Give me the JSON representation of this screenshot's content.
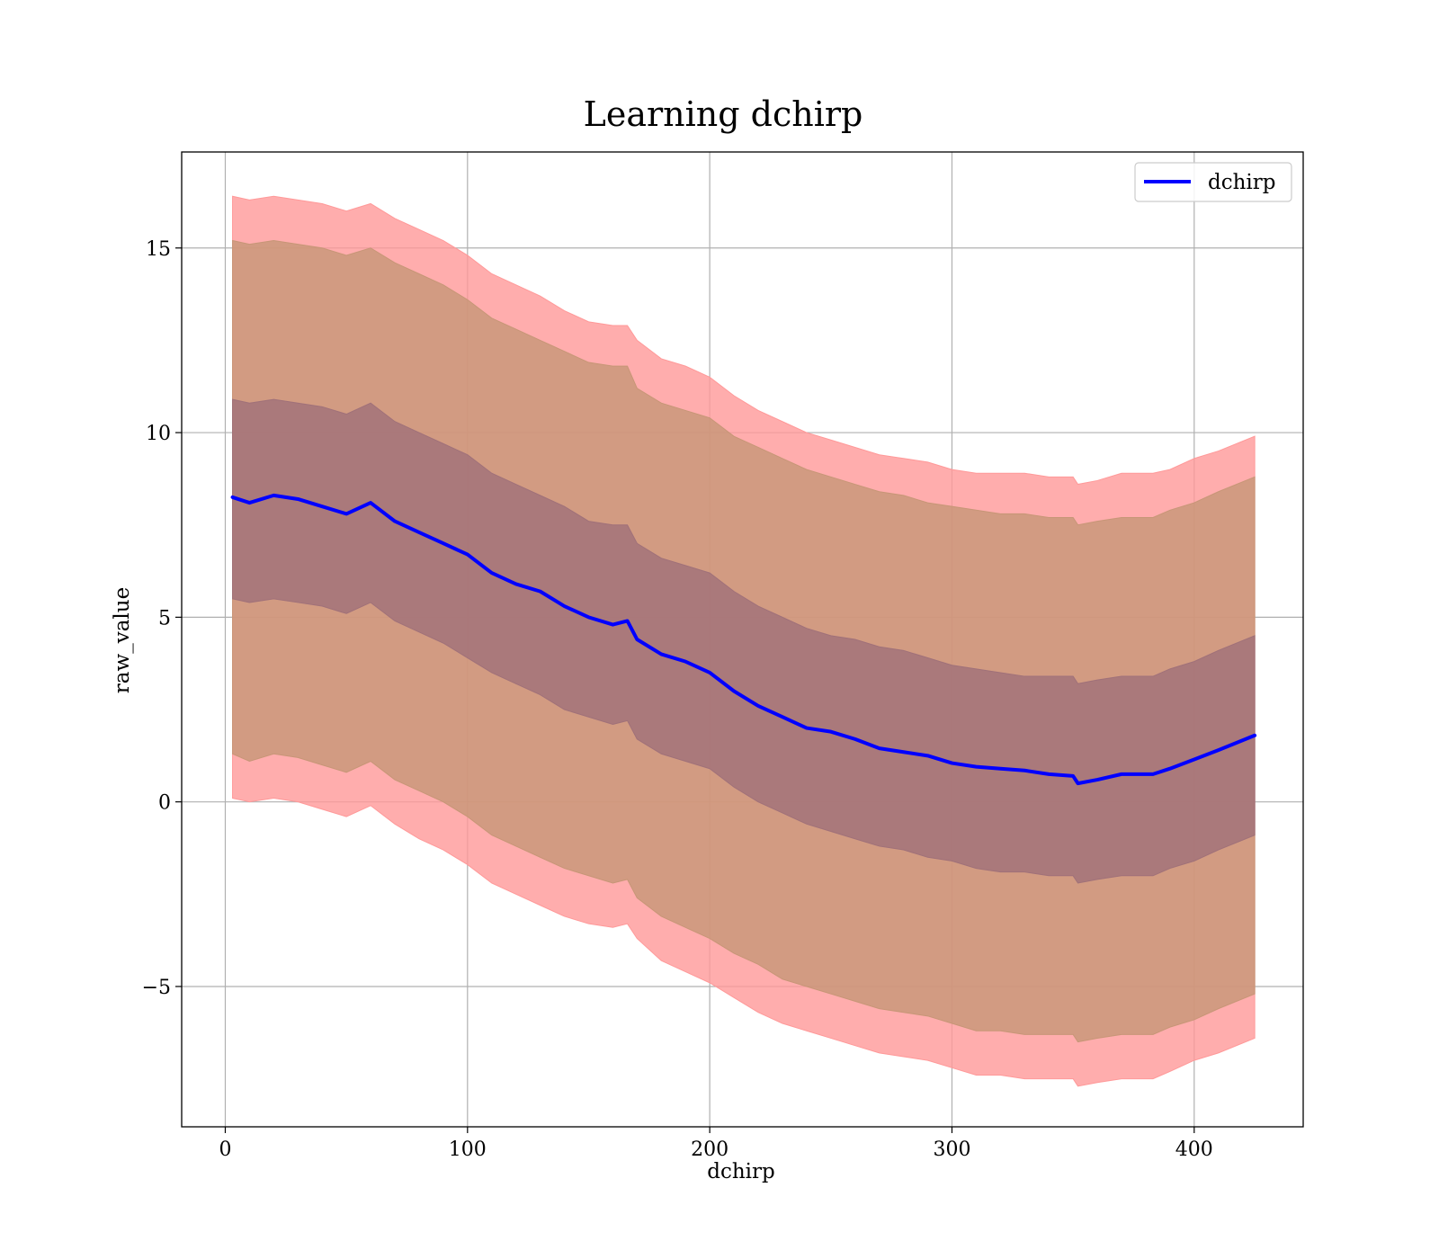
{
  "chart_data": {
    "type": "line",
    "title": "Learning dchirp",
    "xlabel": "dchirp",
    "ylabel": "raw_value",
    "xlim": [
      -18,
      445
    ],
    "ylim": [
      -8.8,
      17.6
    ],
    "xticks": [
      0,
      100,
      200,
      300,
      400
    ],
    "xtick_labels": [
      "0",
      "100",
      "200",
      "300",
      "400"
    ],
    "yticks": [
      -5,
      0,
      5,
      10,
      15
    ],
    "ytick_labels": [
      "−5",
      "0",
      "5",
      "10",
      "15"
    ],
    "grid": true,
    "legend": {
      "placement": "top-right",
      "entries": [
        "dchirp"
      ]
    },
    "colors": {
      "line": "#0000ff",
      "outer_band": "#ff9999",
      "middle_band": "#c79677",
      "inner_band": "#a07179"
    },
    "series": [
      {
        "name": "dchirp",
        "type": "line",
        "x": [
          3,
          10,
          20,
          30,
          40,
          50,
          60,
          70,
          80,
          90,
          100,
          110,
          120,
          130,
          140,
          150,
          160,
          166,
          170,
          180,
          190,
          200,
          210,
          220,
          230,
          240,
          250,
          260,
          270,
          280,
          290,
          300,
          310,
          320,
          330,
          340,
          350,
          352,
          360,
          370,
          380,
          383,
          390,
          400,
          410,
          425
        ],
        "y": [
          8.25,
          8.1,
          8.3,
          8.2,
          8.0,
          7.8,
          8.1,
          7.6,
          7.3,
          7.0,
          6.7,
          6.2,
          5.9,
          5.7,
          5.3,
          5.0,
          4.8,
          4.9,
          4.4,
          4.0,
          3.8,
          3.5,
          3.0,
          2.6,
          2.3,
          2.0,
          1.9,
          1.7,
          1.45,
          1.35,
          1.25,
          1.05,
          0.95,
          0.9,
          0.85,
          0.75,
          0.7,
          0.5,
          0.6,
          0.75,
          0.75,
          0.75,
          0.9,
          1.15,
          1.4,
          1.8
        ]
      }
    ],
    "bands": [
      {
        "level": "outer",
        "x": [
          3,
          10,
          20,
          30,
          40,
          50,
          60,
          70,
          80,
          90,
          100,
          110,
          120,
          130,
          140,
          150,
          160,
          166,
          170,
          180,
          190,
          200,
          210,
          220,
          230,
          240,
          250,
          260,
          270,
          280,
          290,
          300,
          310,
          320,
          330,
          340,
          350,
          352,
          360,
          370,
          380,
          383,
          390,
          400,
          410,
          425
        ],
        "upper": [
          16.4,
          16.3,
          16.4,
          16.3,
          16.2,
          16.0,
          16.2,
          15.8,
          15.5,
          15.2,
          14.8,
          14.3,
          14.0,
          13.7,
          13.3,
          13.0,
          12.9,
          12.9,
          12.5,
          12.0,
          11.8,
          11.5,
          11.0,
          10.6,
          10.3,
          10.0,
          9.8,
          9.6,
          9.4,
          9.3,
          9.2,
          9.0,
          8.9,
          8.9,
          8.9,
          8.8,
          8.8,
          8.6,
          8.7,
          8.9,
          8.9,
          8.9,
          9.0,
          9.3,
          9.5,
          9.9
        ],
        "lower": [
          0.1,
          0.0,
          0.1,
          0.0,
          -0.2,
          -0.4,
          -0.1,
          -0.6,
          -1.0,
          -1.3,
          -1.7,
          -2.2,
          -2.5,
          -2.8,
          -3.1,
          -3.3,
          -3.4,
          -3.3,
          -3.7,
          -4.3,
          -4.6,
          -4.9,
          -5.3,
          -5.7,
          -6.0,
          -6.2,
          -6.4,
          -6.6,
          -6.8,
          -6.9,
          -7.0,
          -7.2,
          -7.4,
          -7.4,
          -7.5,
          -7.5,
          -7.5,
          -7.7,
          -7.6,
          -7.5,
          -7.5,
          -7.5,
          -7.3,
          -7.0,
          -6.8,
          -6.4
        ]
      },
      {
        "level": "middle",
        "x": [
          3,
          10,
          20,
          30,
          40,
          50,
          60,
          70,
          80,
          90,
          100,
          110,
          120,
          130,
          140,
          150,
          160,
          166,
          170,
          180,
          190,
          200,
          210,
          220,
          230,
          240,
          250,
          260,
          270,
          280,
          290,
          300,
          310,
          320,
          330,
          340,
          350,
          352,
          360,
          370,
          380,
          383,
          390,
          400,
          410,
          425
        ],
        "upper": [
          15.2,
          15.1,
          15.2,
          15.1,
          15.0,
          14.8,
          15.0,
          14.6,
          14.3,
          14.0,
          13.6,
          13.1,
          12.8,
          12.5,
          12.2,
          11.9,
          11.8,
          11.8,
          11.2,
          10.8,
          10.6,
          10.4,
          9.9,
          9.6,
          9.3,
          9.0,
          8.8,
          8.6,
          8.4,
          8.3,
          8.1,
          8.0,
          7.9,
          7.8,
          7.8,
          7.7,
          7.7,
          7.5,
          7.6,
          7.7,
          7.7,
          7.7,
          7.9,
          8.1,
          8.4,
          8.8
        ],
        "lower": [
          1.3,
          1.1,
          1.3,
          1.2,
          1.0,
          0.8,
          1.1,
          0.6,
          0.3,
          0.0,
          -0.4,
          -0.9,
          -1.2,
          -1.5,
          -1.8,
          -2.0,
          -2.2,
          -2.1,
          -2.6,
          -3.1,
          -3.4,
          -3.7,
          -4.1,
          -4.4,
          -4.8,
          -5.0,
          -5.2,
          -5.4,
          -5.6,
          -5.7,
          -5.8,
          -6.0,
          -6.2,
          -6.2,
          -6.3,
          -6.3,
          -6.3,
          -6.5,
          -6.4,
          -6.3,
          -6.3,
          -6.3,
          -6.1,
          -5.9,
          -5.6,
          -5.2
        ]
      },
      {
        "level": "inner",
        "x": [
          3,
          10,
          20,
          30,
          40,
          50,
          60,
          70,
          80,
          90,
          100,
          110,
          120,
          130,
          140,
          150,
          160,
          166,
          170,
          180,
          190,
          200,
          210,
          220,
          230,
          240,
          250,
          260,
          270,
          280,
          290,
          300,
          310,
          320,
          330,
          340,
          350,
          352,
          360,
          370,
          380,
          383,
          390,
          400,
          410,
          425
        ],
        "upper": [
          10.9,
          10.8,
          10.9,
          10.8,
          10.7,
          10.5,
          10.8,
          10.3,
          10.0,
          9.7,
          9.4,
          8.9,
          8.6,
          8.3,
          8.0,
          7.6,
          7.5,
          7.5,
          7.0,
          6.6,
          6.4,
          6.2,
          5.7,
          5.3,
          5.0,
          4.7,
          4.5,
          4.4,
          4.2,
          4.1,
          3.9,
          3.7,
          3.6,
          3.5,
          3.4,
          3.4,
          3.4,
          3.2,
          3.3,
          3.4,
          3.4,
          3.4,
          3.6,
          3.8,
          4.1,
          4.5
        ],
        "lower": [
          5.5,
          5.4,
          5.5,
          5.4,
          5.3,
          5.1,
          5.4,
          4.9,
          4.6,
          4.3,
          3.9,
          3.5,
          3.2,
          2.9,
          2.5,
          2.3,
          2.1,
          2.2,
          1.7,
          1.3,
          1.1,
          0.9,
          0.4,
          0.0,
          -0.3,
          -0.6,
          -0.8,
          -1.0,
          -1.2,
          -1.3,
          -1.5,
          -1.6,
          -1.8,
          -1.9,
          -1.9,
          -2.0,
          -2.0,
          -2.2,
          -2.1,
          -2.0,
          -2.0,
          -2.0,
          -1.8,
          -1.6,
          -1.3,
          -0.9
        ]
      }
    ]
  }
}
